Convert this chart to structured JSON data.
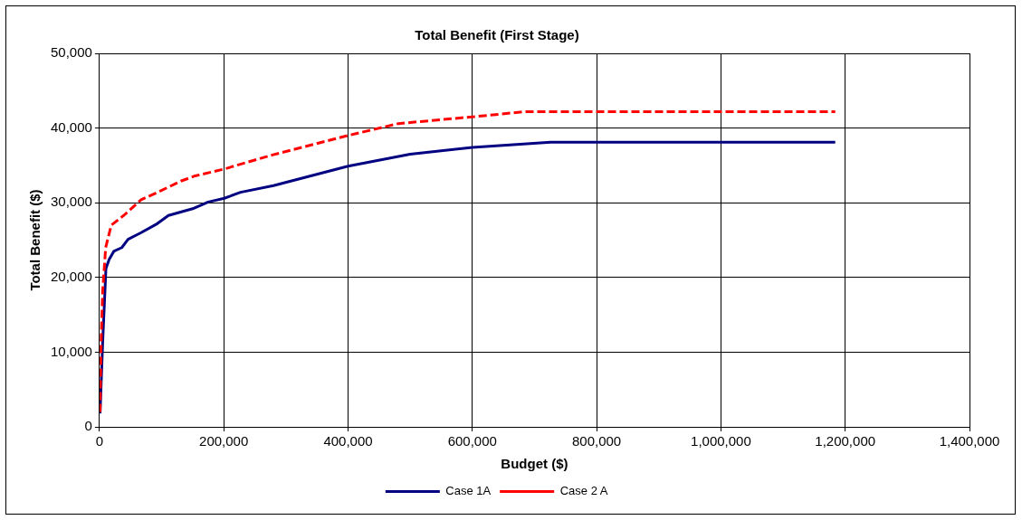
{
  "chart_data": {
    "type": "line",
    "title": "Total Benefit (First Stage)",
    "xlabel": "Budget ($)",
    "ylabel": "Total Benefit ($)",
    "xlim": [
      0,
      1400000
    ],
    "xticks": [
      0,
      {
        "value": 200000,
        "label": "200,000"
      },
      {
        "value": 400000,
        "label": "400,000"
      },
      {
        "value": 600000,
        "label": "600,000"
      },
      {
        "value": 800000,
        "label": "800,000"
      },
      {
        "value": 1000000,
        "label": "1,000,000"
      },
      {
        "value": 1200000,
        "label": "1,200,000"
      },
      {
        "value": 1400000,
        "label": "1,400,000"
      }
    ],
    "ylim": [
      0,
      50000
    ],
    "yticks": [
      0,
      {
        "value": 10000,
        "label": "10,000"
      },
      {
        "value": 20000,
        "label": "20,000"
      },
      {
        "value": 30000,
        "label": "30,000"
      },
      {
        "value": 40000,
        "label": "40,000"
      },
      {
        "value": 50000,
        "label": "50,000"
      }
    ],
    "grid": true,
    "legend": "bottom",
    "marker": "none",
    "series": [
      {
        "name": "Case 1A",
        "color": "#000080",
        "line_style": "solid",
        "x": [
          1000,
          5100,
          10400,
          15500,
          23000,
          36000,
          46000,
          67000,
          93000,
          111000,
          150000,
          175000,
          201000,
          227000,
          280000,
          400000,
          500000,
          600000,
          726000,
          1184000
        ],
        "values": [
          1800,
          11200,
          21200,
          22400,
          23500,
          24000,
          25100,
          26000,
          27200,
          28300,
          29200,
          30100,
          30600,
          31400,
          32300,
          34900,
          36500,
          37400,
          38100,
          38100
        ]
      },
      {
        "name": "Case 2 A",
        "color": "#ff0000",
        "line_style": "dashed",
        "x": [
          1000,
          2600,
          5000,
          10000,
          19000,
          39000,
          67000,
          96000,
          131000,
          154000,
          200000,
          278000,
          400000,
          481000,
          600000,
          686000,
          1184000
        ],
        "values": [
          2000,
          11200,
          18000,
          24000,
          27000,
          28300,
          30400,
          31500,
          32900,
          33600,
          34500,
          36400,
          39000,
          40600,
          41500,
          42200,
          42200
        ]
      }
    ]
  }
}
